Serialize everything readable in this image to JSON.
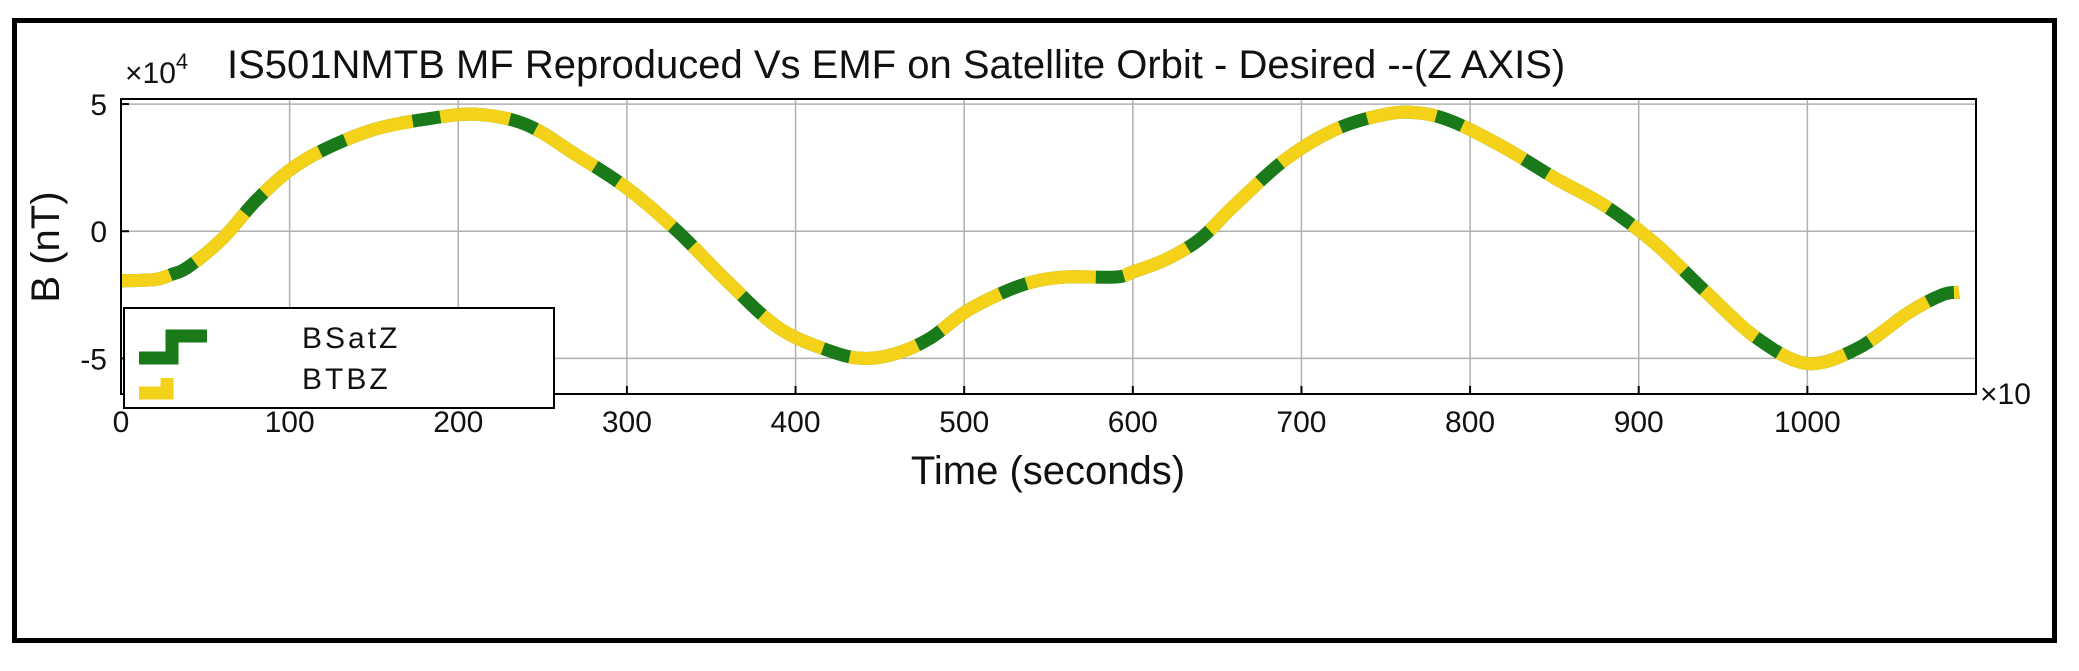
{
  "chart_data": {
    "type": "line",
    "title": "IS501NMTB MF Reproduced Vs EMF on Satellite Orbit - Desired --(Z AXIS)",
    "xlabel": "Time (seconds)",
    "ylabel": "B (nT)",
    "y_multiplier": "×10",
    "y_multiplier_exp": "4",
    "x_multiplier": "×10",
    "xlim": [
      0,
      1100
    ],
    "ylim": [
      -6.4,
      5.2
    ],
    "x_ticks": [
      0,
      100,
      200,
      300,
      400,
      500,
      600,
      700,
      800,
      900,
      1000
    ],
    "x_tick_labels": [
      "0",
      "100",
      "200",
      "300",
      "400",
      "500",
      "600",
      "700",
      "800",
      "900",
      "1000"
    ],
    "y_ticks": [
      5,
      0,
      -5
    ],
    "y_tick_labels": [
      "5",
      "0",
      "-5"
    ],
    "grid": true,
    "legend_position": "bottom-left",
    "series": [
      {
        "name": "BSatZ",
        "color": "#1a7a1a",
        "x": [
          0,
          20,
          30,
          40,
          60,
          80,
          100,
          120,
          150,
          180,
          210,
          240,
          270,
          300,
          330,
          360,
          390,
          420,
          440,
          460,
          480,
          500,
          520,
          540,
          560,
          590,
          600,
          620,
          640,
          660,
          690,
          720,
          750,
          770,
          790,
          820,
          850,
          880,
          910,
          940,
          970,
          1000,
          1030,
          1060,
          1080,
          1090
        ],
        "y": [
          -1.95,
          -1.9,
          -1.7,
          -1.4,
          -0.3,
          1.2,
          2.4,
          3.2,
          4.0,
          4.4,
          4.6,
          4.2,
          3.0,
          1.7,
          0.0,
          -2.0,
          -3.8,
          -4.7,
          -5.0,
          -4.8,
          -4.2,
          -3.2,
          -2.5,
          -2.0,
          -1.8,
          -1.8,
          -1.6,
          -1.1,
          -0.3,
          1.0,
          2.8,
          4.0,
          4.6,
          4.65,
          4.3,
          3.3,
          2.1,
          1.0,
          -0.5,
          -2.4,
          -4.2,
          -5.2,
          -4.6,
          -3.2,
          -2.5,
          -2.4
        ]
      },
      {
        "name": "BTBZ",
        "color": "#f5d21a",
        "x": [
          0,
          20,
          30,
          40,
          60,
          80,
          100,
          120,
          150,
          180,
          210,
          240,
          270,
          300,
          330,
          360,
          390,
          420,
          440,
          460,
          480,
          500,
          520,
          540,
          560,
          590,
          600,
          620,
          640,
          660,
          690,
          720,
          750,
          770,
          790,
          820,
          850,
          880,
          910,
          940,
          970,
          1000,
          1030,
          1060,
          1080,
          1090
        ],
        "y": [
          -1.95,
          -1.9,
          -1.7,
          -1.4,
          -0.3,
          1.2,
          2.4,
          3.2,
          4.0,
          4.4,
          4.6,
          4.2,
          3.0,
          1.7,
          0.0,
          -2.0,
          -3.8,
          -4.7,
          -5.0,
          -4.8,
          -4.2,
          -3.2,
          -2.5,
          -2.0,
          -1.8,
          -1.8,
          -1.6,
          -1.1,
          -0.3,
          1.0,
          2.8,
          4.0,
          4.6,
          4.65,
          4.3,
          3.3,
          2.1,
          1.0,
          -0.5,
          -2.4,
          -4.2,
          -5.2,
          -4.6,
          -3.2,
          -2.5,
          -2.4
        ]
      }
    ]
  }
}
